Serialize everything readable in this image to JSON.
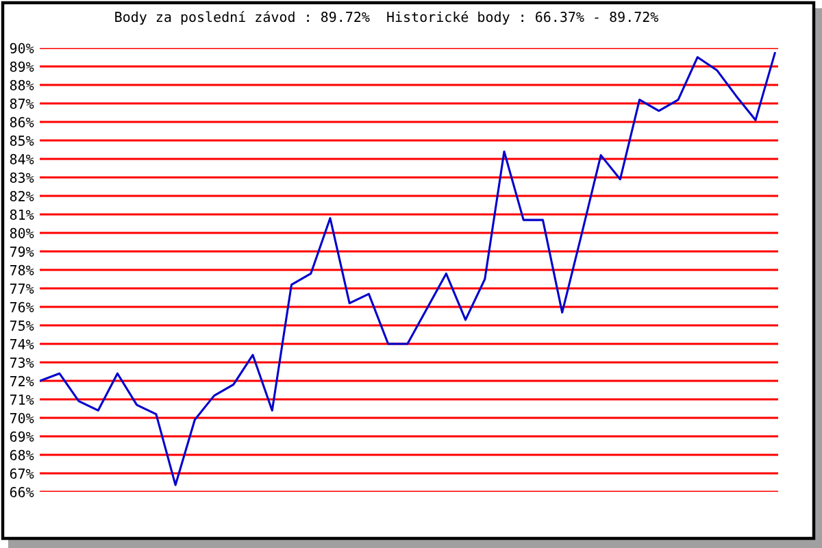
{
  "chart_data": {
    "type": "line",
    "title": "Body za poslední závod : 89.72%  Historické body : 66.37% - 89.72%",
    "categories": [
      null,
      null,
      null,
      null,
      null,
      null,
      null,
      null,
      null,
      null,
      null,
      null,
      null,
      null,
      null,
      null,
      null,
      null,
      null,
      null,
      null,
      null,
      null,
      null,
      null,
      null,
      null,
      null,
      null,
      null,
      null,
      null,
      null,
      null,
      null,
      null,
      null,
      null,
      null
    ],
    "series": [
      {
        "color": "#0000cc",
        "values": [
          72.0,
          72.4,
          70.9,
          70.4,
          72.4,
          70.7,
          70.2,
          66.37,
          69.9,
          71.2,
          71.8,
          73.4,
          70.4,
          77.2,
          77.8,
          80.8,
          76.2,
          76.7,
          74.0,
          74.0,
          75.9,
          77.8,
          75.3,
          77.5,
          84.4,
          80.7,
          80.7,
          75.7,
          79.9,
          84.2,
          82.9,
          87.2,
          86.6,
          87.2,
          89.5,
          88.8,
          87.4,
          86.1,
          89.72
        ]
      }
    ],
    "ylim": [
      66,
      90
    ],
    "yticks": [
      {
        "value": 66,
        "label": "66%"
      },
      {
        "value": 67,
        "label": "67%"
      },
      {
        "value": 68,
        "label": "68%"
      },
      {
        "value": 69,
        "label": "69%"
      },
      {
        "value": 70,
        "label": "70%"
      },
      {
        "value": 71,
        "label": "71%"
      },
      {
        "value": 72,
        "label": "72%"
      },
      {
        "value": 73,
        "label": "73%"
      },
      {
        "value": 74,
        "label": "74%"
      },
      {
        "value": 75,
        "label": "75%"
      },
      {
        "value": 76,
        "label": "76%"
      },
      {
        "value": 77,
        "label": "77%"
      },
      {
        "value": 78,
        "label": "78%"
      },
      {
        "value": 79,
        "label": "79%"
      },
      {
        "value": 80,
        "label": "80%"
      },
      {
        "value": 81,
        "label": "81%"
      },
      {
        "value": 82,
        "label": "82%"
      },
      {
        "value": 83,
        "label": "83%"
      },
      {
        "value": 84,
        "label": "84%"
      },
      {
        "value": 85,
        "label": "85%"
      },
      {
        "value": 86,
        "label": "86%"
      },
      {
        "value": 87,
        "label": "87%"
      },
      {
        "value": 88,
        "label": "88%"
      },
      {
        "value": 89,
        "label": "89%"
      },
      {
        "value": 90,
        "label": "90%"
      }
    ],
    "grid": "y",
    "line_style": "solid",
    "tick_labels": "y"
  }
}
